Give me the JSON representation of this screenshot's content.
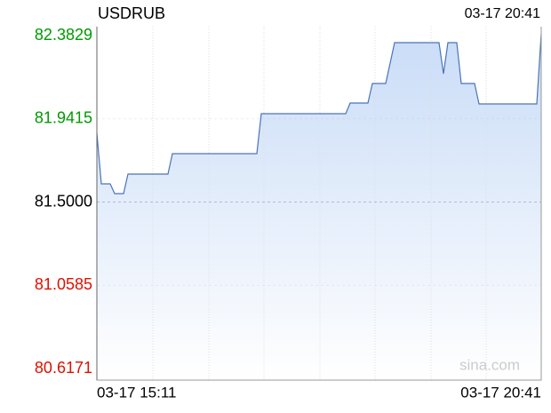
{
  "chart_data": {
    "type": "line",
    "title": "USDRUB",
    "timestamp": "03-17 20:41",
    "watermark": "sina.com",
    "x_labels": [
      "03-17 15:11",
      "03-17 20:41"
    ],
    "color": "#4a74b8",
    "ylim": [
      80.6171,
      82.3829
    ],
    "yticks": [
      {
        "value": 82.3829,
        "label": "82.3829"
      },
      {
        "value": 81.9415,
        "label": "81.9415"
      },
      {
        "value": 81.5,
        "label": "81.5000"
      },
      {
        "value": 81.0585,
        "label": "81.0585"
      },
      {
        "value": 80.6171,
        "label": "80.6171"
      }
    ],
    "ytick_colors": [
      "#009900",
      "#009900",
      "#000000",
      "#dd1100",
      "#dd1100"
    ],
    "grid": true,
    "values": [
      81.8649,
      81.5965,
      81.5965,
      81.5965,
      81.5447,
      81.5447,
      81.5447,
      81.6483,
      81.6483,
      81.6483,
      81.6483,
      81.6483,
      81.6483,
      81.6483,
      81.6483,
      81.6483,
      81.6483,
      81.7566,
      81.7566,
      81.7566,
      81.7566,
      81.7566,
      81.7566,
      81.7566,
      81.7566,
      81.7566,
      81.7566,
      81.7566,
      81.7566,
      81.7566,
      81.7566,
      81.7566,
      81.7566,
      81.7566,
      81.7566,
      81.7566,
      81.7566,
      81.9685,
      81.9685,
      81.9685,
      81.9685,
      81.9685,
      81.9685,
      81.9685,
      81.9685,
      81.9685,
      81.9685,
      81.9685,
      81.9685,
      81.9685,
      81.9685,
      81.9685,
      81.9685,
      81.9685,
      81.9685,
      81.9685,
      81.9685,
      82.025,
      82.025,
      82.025,
      82.025,
      82.025,
      82.1286,
      82.1286,
      82.1286,
      82.1286,
      82.2369,
      82.3452,
      82.3452,
      82.3452,
      82.3452,
      82.3452,
      82.3452,
      82.3452,
      82.3452,
      82.3452,
      82.3452,
      82.3452,
      82.1804,
      82.3452,
      82.3452,
      82.3452,
      82.1286,
      82.1286,
      82.1286,
      82.1286,
      82.0203,
      82.0203,
      82.0203,
      82.0203,
      82.0203,
      82.0203,
      82.0203,
      82.0203,
      82.0203,
      82.0203,
      82.0203,
      82.0203,
      82.0203,
      82.0203,
      82.3923
    ]
  }
}
